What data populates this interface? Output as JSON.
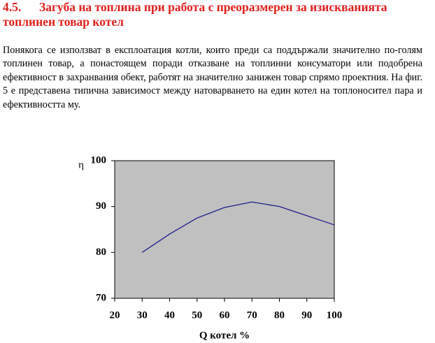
{
  "heading": {
    "number": "4.5.",
    "title": "Загуба на топлина при работа с преоразмерен за изискванията топлинен товар котел"
  },
  "paragraph": "Понякога се използват в  експлоатация котли, които преди са поддържали значително по-голям топлинен товар, а понастоящем поради отказване на топлинни консуматори или подобрена ефективност в захранвания обект, работят на значително занижен товар спрямо проектния. На фиг. 5 е представена типична зависимост между натоварването на един котел на топлоносител пара и ефективността му.",
  "chart_data": {
    "type": "line",
    "ylabel": "η",
    "xlabel": "Q котел %",
    "x": [
      30,
      40,
      50,
      60,
      70,
      80,
      90,
      100
    ],
    "series": [
      {
        "color": "#1f1f8f",
        "values": [
          80,
          84,
          87.5,
          89.8,
          91,
          90,
          88,
          86
        ]
      }
    ],
    "xlim": [
      20,
      100
    ],
    "xticks": [
      20,
      30,
      40,
      50,
      60,
      70,
      80,
      90,
      100
    ],
    "ylim": [
      70,
      100
    ],
    "yticks": [
      70,
      80,
      90,
      100
    ],
    "plot_background": "#c0c0c0"
  }
}
